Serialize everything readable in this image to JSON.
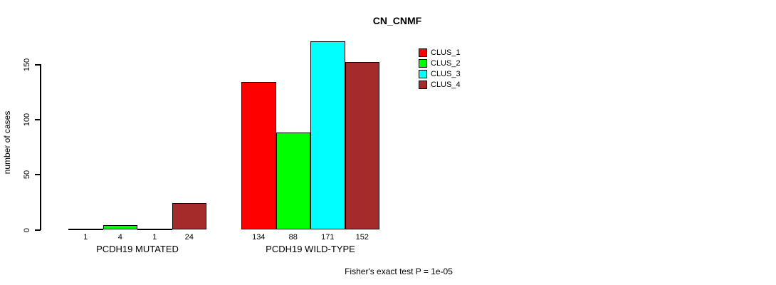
{
  "chart_data": {
    "type": "bar",
    "title": "CN_CNMF",
    "ylabel": "number of cases",
    "xlabel": "",
    "groups": [
      "PCDH19 MUTATED",
      "PCDH19 WILD-TYPE"
    ],
    "series": [
      {
        "name": "CLUS_1",
        "color": "#FF0000",
        "values": [
          1,
          134
        ]
      },
      {
        "name": "CLUS_2",
        "color": "#00FF00",
        "values": [
          4,
          88
        ]
      },
      {
        "name": "CLUS_3",
        "color": "#00FFFF",
        "values": [
          1,
          171
        ]
      },
      {
        "name": "CLUS_4",
        "color": "#A52A2A",
        "values": [
          24,
          152
        ]
      }
    ],
    "bar_value_labels": [
      [
        1,
        4,
        1,
        24
      ],
      [
        134,
        88,
        171,
        152
      ]
    ],
    "yticks": [
      0,
      50,
      100,
      150
    ],
    "ylim": [
      0,
      171
    ],
    "grid": false,
    "legend_position": "right-top",
    "annotation": "Fisher's exact test P = 1e-05"
  },
  "colors": {
    "axis": "#000000",
    "background": "#FFFFFF",
    "clus1": "#FF0000",
    "clus2": "#00FF00",
    "clus3": "#00FFFF",
    "clus4": "#A52A2A"
  }
}
